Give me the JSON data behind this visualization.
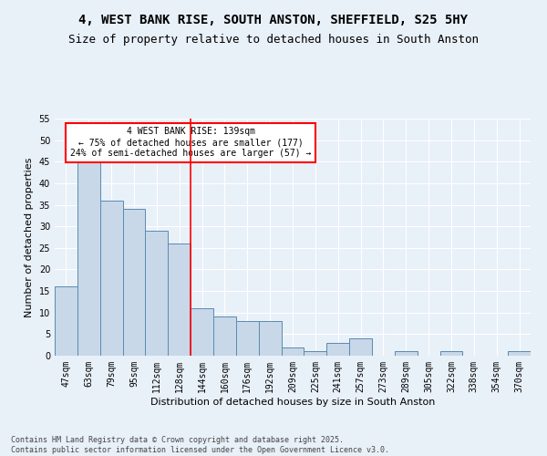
{
  "title1": "4, WEST BANK RISE, SOUTH ANSTON, SHEFFIELD, S25 5HY",
  "title2": "Size of property relative to detached houses in South Anston",
  "xlabel": "Distribution of detached houses by size in South Anston",
  "ylabel": "Number of detached properties",
  "categories": [
    "47sqm",
    "63sqm",
    "79sqm",
    "95sqm",
    "112sqm",
    "128sqm",
    "144sqm",
    "160sqm",
    "176sqm",
    "192sqm",
    "209sqm",
    "225sqm",
    "241sqm",
    "257sqm",
    "273sqm",
    "289sqm",
    "305sqm",
    "322sqm",
    "338sqm",
    "354sqm",
    "370sqm"
  ],
  "values": [
    16,
    45,
    36,
    34,
    29,
    26,
    11,
    9,
    8,
    8,
    2,
    1,
    3,
    4,
    0,
    1,
    0,
    1,
    0,
    0,
    1
  ],
  "bar_color": "#c8d8e8",
  "bar_edge_color": "#5a8ab0",
  "vline_x_index": 6,
  "vline_color": "red",
  "annotation_text": "4 WEST BANK RISE: 139sqm\n← 75% of detached houses are smaller (177)\n24% of semi-detached houses are larger (57) →",
  "annotation_box_color": "white",
  "annotation_box_edge_color": "red",
  "ylim": [
    0,
    55
  ],
  "yticks": [
    0,
    5,
    10,
    15,
    20,
    25,
    30,
    35,
    40,
    45,
    50,
    55
  ],
  "footnote": "Contains HM Land Registry data © Crown copyright and database right 2025.\nContains public sector information licensed under the Open Government Licence v3.0.",
  "background_color": "#e8f0f8",
  "grid_color": "white",
  "title_fontsize": 10,
  "subtitle_fontsize": 9,
  "axis_fontsize": 8,
  "tick_fontsize": 7,
  "footnote_fontsize": 6,
  "annotation_fontsize": 7
}
